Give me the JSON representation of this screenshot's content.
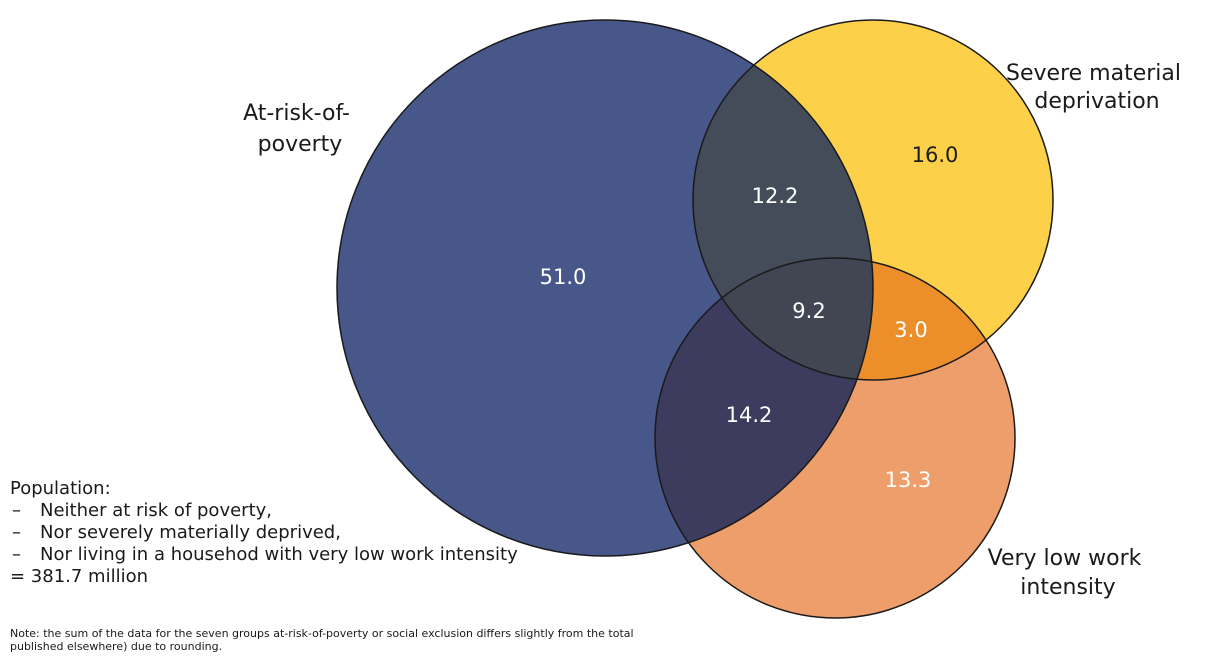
{
  "venn": {
    "sets": [
      {
        "id": "poverty",
        "label_lines": [
          "At-risk-of-",
          "poverty"
        ],
        "color": "#47578a"
      },
      {
        "id": "deprivation",
        "label_lines": [
          "Severe material",
          "deprivation"
        ],
        "color": "#fdd04a"
      },
      {
        "id": "work",
        "label_lines": [
          "Very low work",
          "intensity"
        ],
        "color": "#ee9e6b"
      }
    ],
    "regions": [
      {
        "sets": [
          "poverty"
        ],
        "value": "51.0"
      },
      {
        "sets": [
          "deprivation"
        ],
        "value": "16.0"
      },
      {
        "sets": [
          "work"
        ],
        "value": "13.3"
      },
      {
        "sets": [
          "poverty",
          "deprivation"
        ],
        "value": "12.2"
      },
      {
        "sets": [
          "poverty",
          "work"
        ],
        "value": "14.2"
      },
      {
        "sets": [
          "deprivation",
          "work"
        ],
        "value": "3.0"
      },
      {
        "sets": [
          "poverty",
          "deprivation",
          "work"
        ],
        "value": "9.2"
      }
    ],
    "overlap_colors": {
      "poverty_deprivation": "#444c5a",
      "poverty_work": "#3e3c5e",
      "deprivation_work": "#ec8f2b",
      "all": "#424552"
    }
  },
  "population": {
    "title": "Population:",
    "items": [
      "Neither at risk of poverty,",
      "Nor severely materially deprived,",
      "Nor living in a househod with very low work intensity"
    ],
    "item_prefix": "–",
    "total": "= 381.7 million"
  },
  "note": "Note: the sum of the data for the seven groups at-risk-of-poverty or social exclusion differs slightly from the total published elsewhere) due to rounding."
}
